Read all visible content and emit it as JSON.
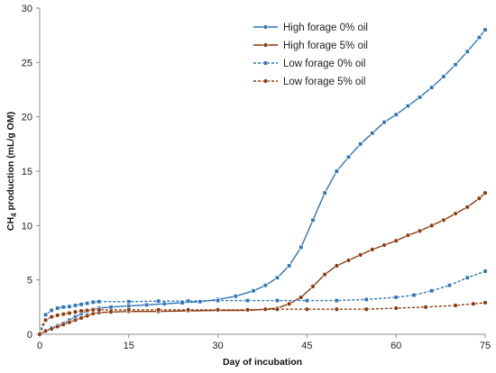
{
  "chart_data": {
    "type": "line",
    "xlabel": "Day of incubation",
    "ylabel_main": "CH",
    "ylabel_sub": "4",
    "ylabel_rest": " production (mL/g OM)",
    "xlim": [
      0,
      75
    ],
    "ylim": [
      0,
      30
    ],
    "xticks": [
      0,
      15,
      30,
      45,
      60,
      75
    ],
    "yticks": [
      0,
      5,
      10,
      15,
      20,
      25,
      30
    ],
    "grid": false,
    "legend_position": "top-right",
    "series": [
      {
        "name": "High forage 0% oil",
        "color": "#2E75B6",
        "dash": "solid",
        "marker": "square",
        "points": [
          [
            0,
            0
          ],
          [
            1,
            0.3
          ],
          [
            2,
            0.6
          ],
          [
            3,
            0.8
          ],
          [
            4,
            1.0
          ],
          [
            5,
            1.3
          ],
          [
            6,
            1.6
          ],
          [
            7,
            1.9
          ],
          [
            8,
            2.1
          ],
          [
            9,
            2.3
          ],
          [
            10,
            2.4
          ],
          [
            12,
            2.5
          ],
          [
            15,
            2.6
          ],
          [
            18,
            2.7
          ],
          [
            21,
            2.8
          ],
          [
            24,
            2.9
          ],
          [
            27,
            3.0
          ],
          [
            30,
            3.2
          ],
          [
            33,
            3.5
          ],
          [
            36,
            4.0
          ],
          [
            38,
            4.5
          ],
          [
            40,
            5.2
          ],
          [
            42,
            6.3
          ],
          [
            44,
            8.0
          ],
          [
            46,
            10.5
          ],
          [
            48,
            13.0
          ],
          [
            50,
            15.0
          ],
          [
            52,
            16.3
          ],
          [
            54,
            17.5
          ],
          [
            56,
            18.5
          ],
          [
            58,
            19.5
          ],
          [
            60,
            20.2
          ],
          [
            62,
            21.0
          ],
          [
            64,
            21.8
          ],
          [
            66,
            22.7
          ],
          [
            68,
            23.7
          ],
          [
            70,
            24.8
          ],
          [
            72,
            26.0
          ],
          [
            74,
            27.3
          ],
          [
            75,
            28.0
          ]
        ]
      },
      {
        "name": "High forage 5% oil",
        "color": "#8B3A0F",
        "dash": "solid",
        "marker": "circle",
        "points": [
          [
            0,
            0
          ],
          [
            1,
            0.3
          ],
          [
            2,
            0.5
          ],
          [
            3,
            0.7
          ],
          [
            4,
            0.9
          ],
          [
            5,
            1.1
          ],
          [
            6,
            1.3
          ],
          [
            7,
            1.5
          ],
          [
            8,
            1.7
          ],
          [
            9,
            1.9
          ],
          [
            10,
            2.0
          ],
          [
            12,
            2.05
          ],
          [
            15,
            2.1
          ],
          [
            20,
            2.1
          ],
          [
            25,
            2.15
          ],
          [
            30,
            2.2
          ],
          [
            35,
            2.2
          ],
          [
            38,
            2.3
          ],
          [
            40,
            2.4
          ],
          [
            42,
            2.8
          ],
          [
            44,
            3.4
          ],
          [
            46,
            4.4
          ],
          [
            48,
            5.5
          ],
          [
            50,
            6.3
          ],
          [
            52,
            6.8
          ],
          [
            54,
            7.3
          ],
          [
            56,
            7.8
          ],
          [
            58,
            8.2
          ],
          [
            60,
            8.6
          ],
          [
            62,
            9.1
          ],
          [
            64,
            9.5
          ],
          [
            66,
            10.0
          ],
          [
            68,
            10.5
          ],
          [
            70,
            11.1
          ],
          [
            72,
            11.7
          ],
          [
            74,
            12.5
          ],
          [
            75,
            13.0
          ]
        ]
      },
      {
        "name": "Low forage 0% oil",
        "color": "#2E75B6",
        "dash": "dashed",
        "marker": "square",
        "points": [
          [
            0,
            0
          ],
          [
            1,
            1.8
          ],
          [
            2,
            2.2
          ],
          [
            3,
            2.4
          ],
          [
            4,
            2.5
          ],
          [
            5,
            2.55
          ],
          [
            6,
            2.65
          ],
          [
            7,
            2.75
          ],
          [
            8,
            2.85
          ],
          [
            9,
            2.95
          ],
          [
            10,
            3.0
          ],
          [
            15,
            3.0
          ],
          [
            20,
            3.05
          ],
          [
            25,
            3.05
          ],
          [
            30,
            3.1
          ],
          [
            35,
            3.1
          ],
          [
            40,
            3.1
          ],
          [
            45,
            3.1
          ],
          [
            50,
            3.1
          ],
          [
            55,
            3.2
          ],
          [
            60,
            3.4
          ],
          [
            63,
            3.6
          ],
          [
            66,
            4.0
          ],
          [
            69,
            4.5
          ],
          [
            72,
            5.2
          ],
          [
            75,
            5.8
          ]
        ]
      },
      {
        "name": "Low forage 5% oil",
        "color": "#8B3A0F",
        "dash": "dashed",
        "marker": "circle",
        "points": [
          [
            0,
            0
          ],
          [
            1,
            1.3
          ],
          [
            2,
            1.6
          ],
          [
            3,
            1.75
          ],
          [
            4,
            1.85
          ],
          [
            5,
            1.95
          ],
          [
            6,
            2.05
          ],
          [
            7,
            2.15
          ],
          [
            8,
            2.2
          ],
          [
            9,
            2.25
          ],
          [
            10,
            2.25
          ],
          [
            15,
            2.25
          ],
          [
            20,
            2.25
          ],
          [
            25,
            2.25
          ],
          [
            30,
            2.25
          ],
          [
            35,
            2.25
          ],
          [
            40,
            2.3
          ],
          [
            45,
            2.3
          ],
          [
            50,
            2.3
          ],
          [
            55,
            2.3
          ],
          [
            60,
            2.4
          ],
          [
            65,
            2.5
          ],
          [
            70,
            2.65
          ],
          [
            73,
            2.8
          ],
          [
            75,
            2.9
          ]
        ]
      }
    ]
  }
}
